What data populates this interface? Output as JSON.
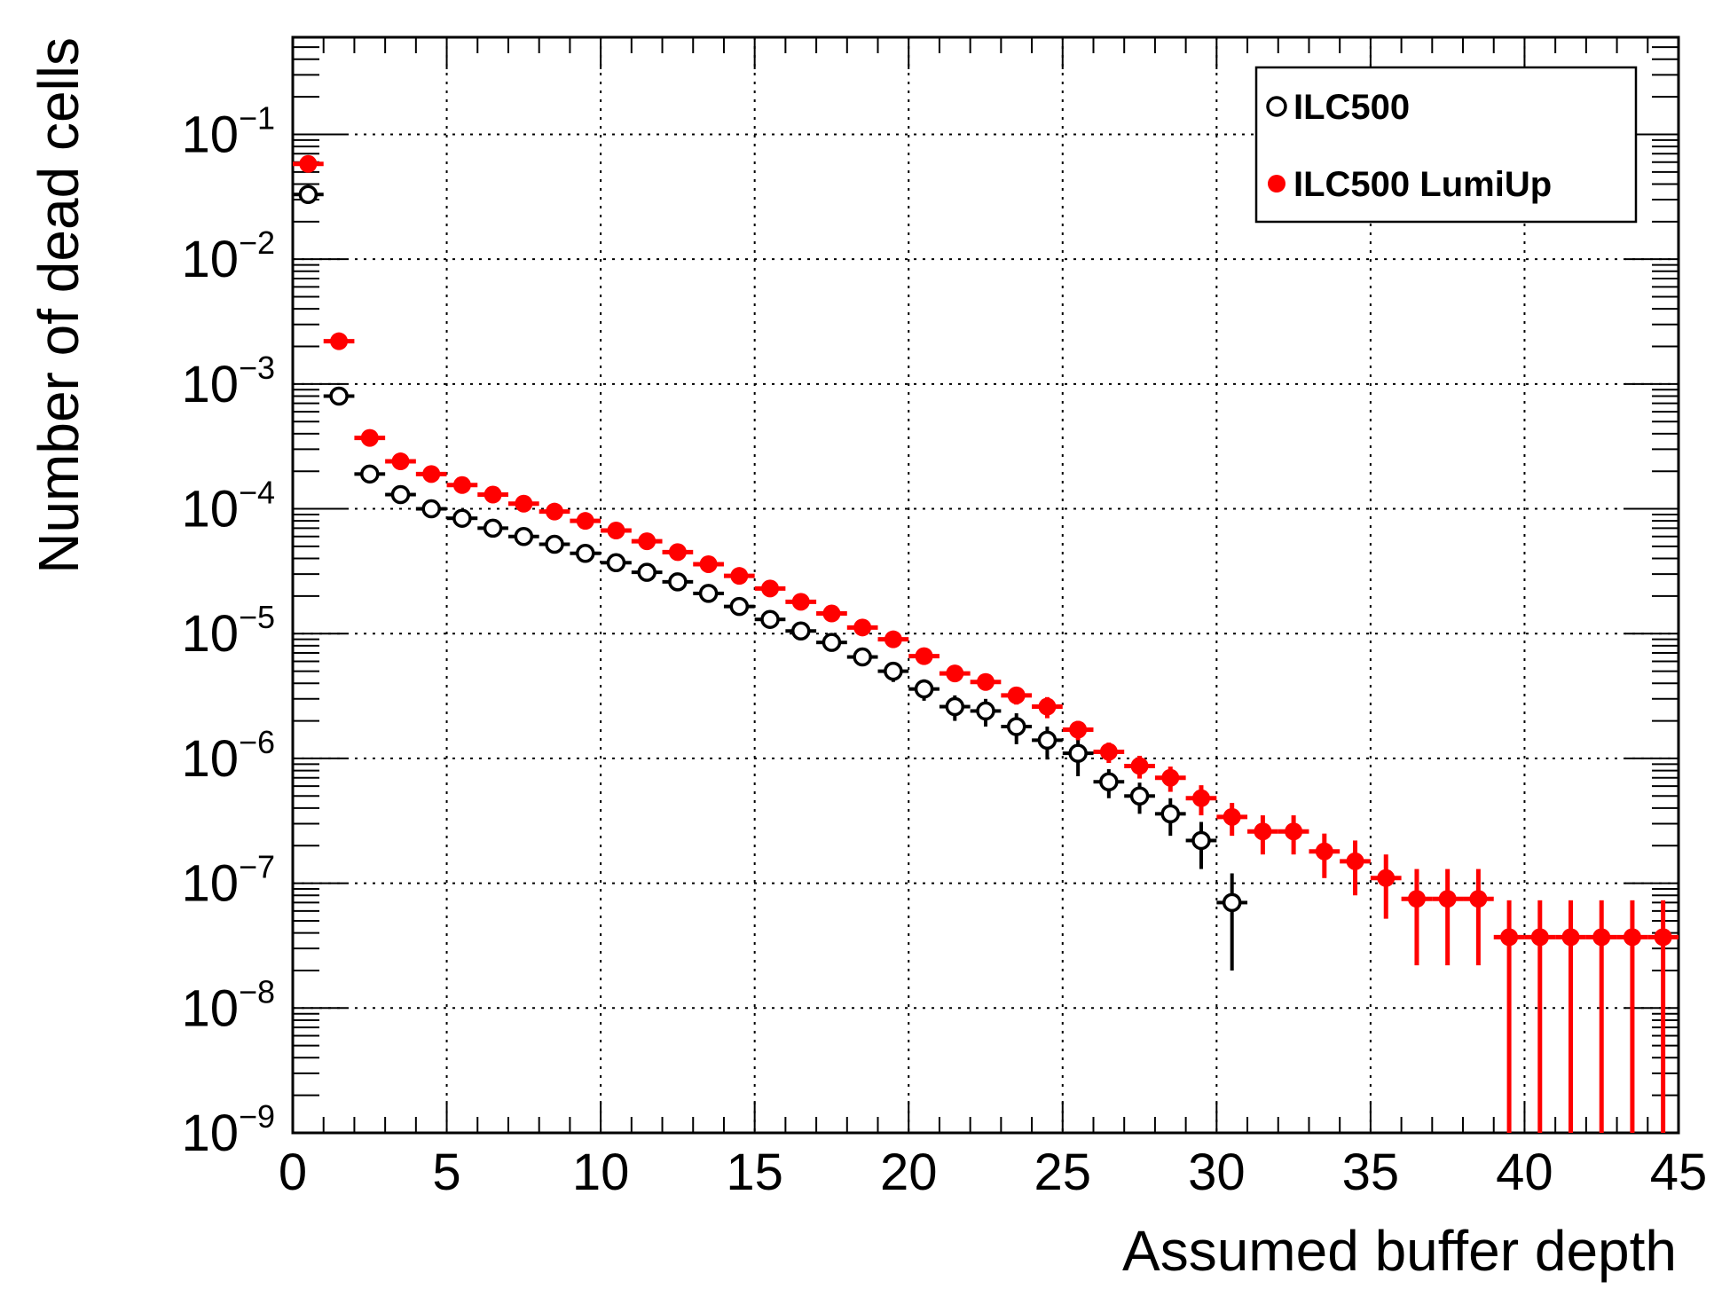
{
  "chart_data": {
    "type": "scatter",
    "xlabel": "Assumed buffer depth",
    "ylabel": "Number of dead cells",
    "xlim": [
      0,
      45
    ],
    "ylim": [
      1e-09,
      0.6
    ],
    "y_scale": "log",
    "grid": true,
    "legend_position": "top-right",
    "x_ticks": [
      "0",
      "5",
      "10",
      "15",
      "20",
      "25",
      "30",
      "35",
      "40",
      "45"
    ],
    "y_ticks": [
      {
        "base": "10",
        "exp": "−1"
      },
      {
        "base": "10",
        "exp": "−2"
      },
      {
        "base": "10",
        "exp": "−3"
      },
      {
        "base": "10",
        "exp": "−4"
      },
      {
        "base": "10",
        "exp": "−5"
      },
      {
        "base": "10",
        "exp": "−6"
      },
      {
        "base": "10",
        "exp": "−7"
      },
      {
        "base": "10",
        "exp": "−8"
      },
      {
        "base": "10",
        "exp": "−9"
      }
    ],
    "series": [
      {
        "name": "ILC500",
        "marker": "open-circle",
        "color": "#000000",
        "x": [
          0.5,
          1.5,
          2.5,
          3.5,
          4.5,
          5.5,
          6.5,
          7.5,
          8.5,
          9.5,
          10.5,
          11.5,
          12.5,
          13.5,
          14.5,
          15.5,
          16.5,
          17.5,
          18.5,
          19.5,
          20.5,
          21.5,
          22.5,
          23.5,
          24.5,
          25.5,
          26.5,
          27.5,
          28.5,
          29.5,
          30.5
        ],
        "y": [
          0.033,
          0.0008,
          0.00019,
          0.00013,
          0.0001,
          8.4e-05,
          7e-05,
          6e-05,
          5.2e-05,
          4.4e-05,
          3.7e-05,
          3.1e-05,
          2.6e-05,
          2.1e-05,
          1.65e-05,
          1.3e-05,
          1.05e-05,
          8.5e-06,
          6.5e-06,
          5e-06,
          3.6e-06,
          2.6e-06,
          2.4e-06,
          1.8e-06,
          1.4e-06,
          1.1e-06,
          6.5e-07,
          5e-07,
          3.6e-07,
          2.2e-07,
          7e-08
        ],
        "y_low": [
          0.031,
          0.00076,
          0.00018,
          0.000123,
          9.5e-05,
          7.9e-05,
          6.6e-05,
          5.6e-05,
          4.8e-05,
          4.1e-05,
          3.4e-05,
          2.85e-05,
          2.37e-05,
          1.89e-05,
          1.48e-05,
          1.15e-05,
          9.2e-06,
          7.3e-06,
          5.5e-06,
          4.1e-06,
          2.9e-06,
          2e-06,
          1.8e-06,
          1.3e-06,
          9.8e-07,
          7.2e-07,
          4.8e-07,
          3.6e-07,
          2.4e-07,
          1.3e-07,
          2e-08
        ],
        "y_high": [
          0.035,
          0.00084,
          0.0002,
          0.000137,
          0.000105,
          8.9e-05,
          7.4e-05,
          6.4e-05,
          5.6e-05,
          4.7e-05,
          4e-05,
          3.35e-05,
          2.83e-05,
          2.31e-05,
          1.82e-05,
          1.45e-05,
          1.18e-05,
          9.7e-06,
          7.5e-06,
          5.9e-06,
          4.3e-06,
          3.2e-06,
          3e-06,
          2.3e-06,
          1.8e-06,
          1.48e-06,
          8.2e-07,
          6.4e-07,
          4.8e-07,
          3.1e-07,
          1.2e-07
        ]
      },
      {
        "name": "ILC500 LumiUp",
        "marker": "filled-circle",
        "color": "#ff0000",
        "x": [
          0.5,
          1.5,
          2.5,
          3.5,
          4.5,
          5.5,
          6.5,
          7.5,
          8.5,
          9.5,
          10.5,
          11.5,
          12.5,
          13.5,
          14.5,
          15.5,
          16.5,
          17.5,
          18.5,
          19.5,
          20.5,
          21.5,
          22.5,
          23.5,
          24.5,
          25.5,
          26.5,
          27.5,
          28.5,
          29.5,
          30.5,
          31.5,
          32.5,
          33.5,
          34.5,
          35.5,
          36.5,
          37.5,
          38.5,
          39.5,
          40.5,
          41.5,
          42.5,
          43.5,
          44.5
        ],
        "y": [
          0.058,
          0.0022,
          0.00037,
          0.00024,
          0.00019,
          0.000155,
          0.00013,
          0.00011,
          9.5e-05,
          8e-05,
          6.7e-05,
          5.5e-05,
          4.5e-05,
          3.6e-05,
          2.9e-05,
          2.3e-05,
          1.8e-05,
          1.45e-05,
          1.12e-05,
          9e-06,
          6.6e-06,
          4.8e-06,
          4.1e-06,
          3.2e-06,
          2.6e-06,
          1.7e-06,
          1.13e-06,
          8.7e-07,
          7e-07,
          4.8e-07,
          3.4e-07,
          2.6e-07,
          2.6e-07,
          1.8e-07,
          1.5e-07,
          1.1e-07,
          7.5e-08,
          7.5e-08,
          7.5e-08,
          3.7e-08,
          3.7e-08,
          3.7e-08,
          3.7e-08,
          3.7e-08,
          3.7e-08
        ],
        "y_low": [
          0.055,
          0.0021,
          0.00035,
          0.000228,
          0.00018,
          0.000147,
          0.000123,
          0.000104,
          9e-05,
          7.6e-05,
          6.3e-05,
          5.2e-05,
          4.2e-05,
          3.38e-05,
          2.71e-05,
          2.14e-05,
          1.67e-05,
          1.33e-05,
          1.02e-05,
          8.1e-06,
          5.9e-06,
          4.2e-06,
          3.5e-06,
          2.7e-06,
          2.1e-06,
          1.4e-06,
          9.2e-07,
          6.9e-07,
          5.4e-07,
          3.5e-07,
          2.4e-07,
          1.7e-07,
          1.7e-07,
          1.1e-07,
          8e-08,
          5.2e-08,
          2.2e-08,
          2.2e-08,
          2.2e-08,
          1e-09,
          1e-09,
          1e-09,
          1e-09,
          1e-09,
          1e-09
        ],
        "y_high": [
          0.061,
          0.0023,
          0.00039,
          0.000252,
          0.0002,
          0.000163,
          0.000137,
          0.000116,
          0.0001,
          8.4e-05,
          7.1e-05,
          5.8e-05,
          4.8e-05,
          3.82e-05,
          3.09e-05,
          2.46e-05,
          1.93e-05,
          1.57e-05,
          1.22e-05,
          9.9e-06,
          7.3e-06,
          5.4e-06,
          4.7e-06,
          3.7e-06,
          3.1e-06,
          2e-06,
          1.34e-06,
          1.05e-06,
          8.6e-07,
          6.1e-07,
          4.4e-07,
          3.5e-07,
          3.5e-07,
          2.5e-07,
          2.2e-07,
          1.7e-07,
          1.3e-07,
          1.3e-07,
          1.3e-07,
          7.3e-08,
          7.3e-08,
          7.3e-08,
          7.3e-08,
          7.3e-08,
          7.3e-08
        ]
      }
    ],
    "legend": [
      {
        "label": "ILC500",
        "marker": "open-circle",
        "color": "#000000"
      },
      {
        "label": "ILC500 LumiUp",
        "marker": "filled-circle",
        "color": "#ff0000"
      }
    ]
  }
}
